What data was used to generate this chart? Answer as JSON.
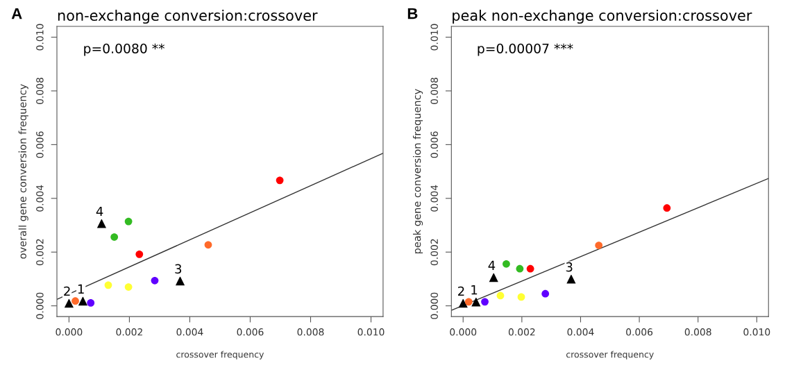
{
  "chart_data": [
    {
      "type": "scatter",
      "title": "non-exchange conversion:crossover",
      "xlabel": "crossover frequency",
      "ylabel": "overall gene conversion frequency",
      "xlim": [
        -0.0004,
        0.0104
      ],
      "ylim": [
        -0.0004,
        0.0104
      ],
      "xticks": [
        {
          "value": 0,
          "label": "0.000"
        },
        {
          "value": 0.002,
          "label": "0.002"
        },
        {
          "value": 0.004,
          "label": "0.004"
        },
        {
          "value": 0.006,
          "label": "0.006"
        },
        {
          "value": 0.008,
          "label": "0.008"
        },
        {
          "value": 0.01,
          "label": "0.010"
        }
      ],
      "yticks": [
        {
          "value": 0,
          "label": "0.000"
        },
        {
          "value": 0.002,
          "label": "0.002"
        },
        {
          "value": 0.004,
          "label": "0.004"
        },
        {
          "value": 0.006,
          "label": "0.006"
        },
        {
          "value": 0.008,
          "label": "0.008"
        },
        {
          "value": 0.01,
          "label": "0.010"
        }
      ],
      "grid": false,
      "legend": false,
      "series": [
        {
          "type": "line",
          "color": "#333333",
          "x": [
            -0.0004,
            0.0104
          ],
          "values": [
            0.00024,
            0.00568
          ],
          "marker": "none"
        },
        {
          "color": "#000000",
          "marker": "triangle",
          "x": [
            0.0,
            0.00046,
            0.00368,
            0.00108
          ],
          "values": [
            0.0001,
            0.00018,
            0.00093,
            0.00307
          ]
        },
        {
          "color": "#ff6a2a",
          "marker": "circle",
          "x": [
            0.00021,
            0.00461
          ],
          "values": [
            0.00018,
            0.00227
          ]
        },
        {
          "color": "#6000ff",
          "marker": "circle",
          "x": [
            0.00072,
            0.00284
          ],
          "values": [
            0.00011,
            0.00094
          ]
        },
        {
          "color": "#ffff33",
          "marker": "circle",
          "x": [
            0.0013,
            0.00197
          ],
          "values": [
            0.00077,
            0.0007
          ]
        },
        {
          "color": "#ff0000",
          "marker": "circle",
          "x": [
            0.00233,
            0.00698
          ],
          "values": [
            0.00192,
            0.00467
          ]
        },
        {
          "color": "#33bb22",
          "marker": "circle",
          "x": [
            0.0015,
            0.00197
          ],
          "values": [
            0.00256,
            0.00314
          ]
        }
      ],
      "annotations": [
        "A",
        "p=0.0080 **",
        {
          "text": "1",
          "x": 0.00046,
          "y": 0.00018
        },
        {
          "text": "2",
          "x": 0.0,
          "y": 0.0001
        },
        {
          "text": "3",
          "x": 0.00368,
          "y": 0.00093
        },
        {
          "text": "4",
          "x": 0.00108,
          "y": 0.00307
        }
      ]
    },
    {
      "type": "scatter",
      "title": "peak non-exchange conversion:crossover",
      "xlabel": "crossover frequency",
      "ylabel": "peak gene conversion frequency",
      "xlim": [
        -0.0004,
        0.0104
      ],
      "ylim": [
        -0.0004,
        0.0104
      ],
      "xticks": [
        {
          "value": 0,
          "label": "0.000"
        },
        {
          "value": 0.002,
          "label": "0.002"
        },
        {
          "value": 0.004,
          "label": "0.004"
        },
        {
          "value": 0.006,
          "label": "0.006"
        },
        {
          "value": 0.008,
          "label": "0.008"
        },
        {
          "value": 0.01,
          "label": "0.010"
        }
      ],
      "yticks": [
        {
          "value": 0,
          "label": "0.000"
        },
        {
          "value": 0.002,
          "label": "0.002"
        },
        {
          "value": 0.004,
          "label": "0.004"
        },
        {
          "value": 0.006,
          "label": "0.006"
        },
        {
          "value": 0.008,
          "label": "0.008"
        },
        {
          "value": 0.01,
          "label": "0.010"
        }
      ],
      "grid": false,
      "legend": false,
      "series": [
        {
          "type": "line",
          "color": "#333333",
          "x": [
            -0.0004,
            0.0104
          ],
          "values": [
            -0.00017,
            0.00474
          ],
          "marker": "none"
        },
        {
          "color": "#000000",
          "marker": "triangle",
          "x": [
            0.0,
            0.00044,
            0.00368,
            0.00104
          ],
          "values": [
            0.0001,
            0.00015,
            0.001,
            0.00106
          ]
        },
        {
          "color": "#ff6a2a",
          "marker": "circle",
          "x": [
            0.00019,
            0.00462
          ],
          "values": [
            0.00015,
            0.00225
          ]
        },
        {
          "color": "#6000ff",
          "marker": "circle",
          "x": [
            0.00074,
            0.0028
          ],
          "values": [
            0.00015,
            0.00045
          ]
        },
        {
          "color": "#ffff33",
          "marker": "circle",
          "x": [
            0.00127,
            0.00198
          ],
          "values": [
            0.00038,
            0.00033
          ]
        },
        {
          "color": "#ff0000",
          "marker": "circle",
          "x": [
            0.00229,
            0.00694
          ],
          "values": [
            0.00138,
            0.00364
          ]
        },
        {
          "color": "#33bb22",
          "marker": "circle",
          "x": [
            0.00147,
            0.00193
          ],
          "values": [
            0.00156,
            0.00138
          ]
        }
      ],
      "annotations": [
        "B",
        "p=0.00007 ***",
        {
          "text": "1",
          "x": 0.00044,
          "y": 0.00015
        },
        {
          "text": "2",
          "x": 0.0,
          "y": 0.0001
        },
        {
          "text": "3",
          "x": 0.00368,
          "y": 0.001
        },
        {
          "text": "4",
          "x": 0.00104,
          "y": 0.00106
        }
      ]
    }
  ]
}
